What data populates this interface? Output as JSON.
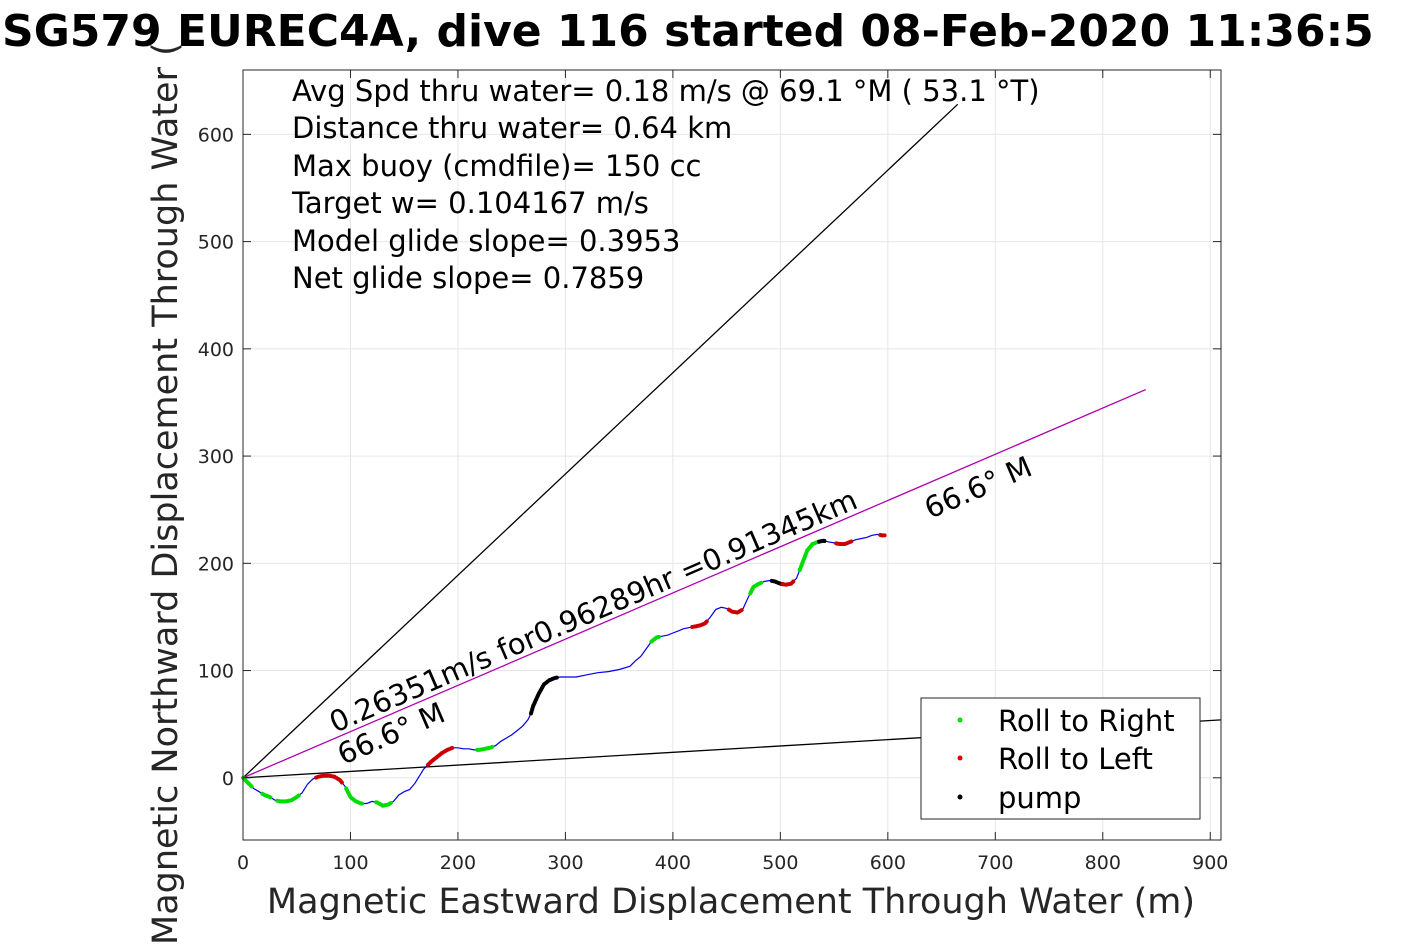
{
  "chart_data": {
    "type": "line",
    "title": "SG579 EUREC4A, dive 116 started 08-Feb-2020 11:36:5",
    "xlabel": "Magnetic Eastward Displacement Through Water (m)",
    "ylabel": "Magnetic Northward Displacement Through Water (",
    "xlim": [
      0,
      910
    ],
    "ylim": [
      -58,
      660
    ],
    "xticks": [
      "0",
      "100",
      "200",
      "300",
      "400",
      "500",
      "600",
      "700",
      "800",
      "900"
    ],
    "yticks": [
      "0",
      "100",
      "200",
      "300",
      "400",
      "500",
      "600"
    ],
    "grid": true,
    "info_lines": [
      "Avg Spd thru water=  0.18 m/s @  69.1 °M ( 53.1 °T)",
      "Distance thru water=  0.64 km",
      "Max buoy (cmdfile)= 150 cc",
      "Target w= 0.104167 m/s",
      "Model glide slope= 0.3953",
      "Net glide slope= 0.7859"
    ],
    "current_label": "0.26351m/s for0.96289hr =0.91345km",
    "heading_labels": [
      "66.6° M",
      "66.6° M"
    ],
    "reference_lines": [
      {
        "x": [
          0,
          665
        ],
        "y": [
          0,
          628
        ],
        "color": "#000000"
      },
      {
        "x": [
          0,
          910
        ],
        "y": [
          0,
          54
        ],
        "color": "#000000"
      },
      {
        "x": [
          0,
          840
        ],
        "y": [
          0,
          362
        ],
        "color": "#b000b0"
      }
    ],
    "track": {
      "x": [
        0,
        5,
        10,
        15,
        20,
        25,
        30,
        35,
        40,
        45,
        50,
        55,
        60,
        65,
        70,
        75,
        80,
        85,
        90,
        95,
        100,
        105,
        110,
        115,
        120,
        125,
        130,
        135,
        140,
        145,
        150,
        155,
        160,
        165,
        168,
        170,
        175,
        180,
        185,
        190,
        195,
        200,
        205,
        210,
        215,
        220,
        225,
        230,
        235,
        240,
        245,
        250,
        255,
        260,
        265,
        268,
        270,
        275,
        280,
        285,
        290,
        295,
        300,
        310,
        320,
        330,
        340,
        350,
        360,
        365,
        370,
        375,
        380,
        385,
        390,
        395,
        400,
        405,
        410,
        415,
        420,
        425,
        430,
        435,
        440,
        445,
        450,
        455,
        460,
        465,
        470,
        475,
        480,
        485,
        490,
        495,
        500,
        505,
        510,
        515,
        520,
        525,
        530,
        535,
        540,
        545,
        550,
        555,
        560,
        565,
        570,
        575,
        580,
        585,
        590,
        595
      ],
      "y": [
        0,
        -5,
        -10,
        -13,
        -16,
        -18,
        -21,
        -22,
        -22,
        -21,
        -18,
        -14,
        -6,
        -1,
        1,
        2,
        2,
        1,
        -2,
        -8,
        -18,
        -22,
        -24,
        -24,
        -22,
        -23,
        -26,
        -25,
        -22,
        -16,
        -13,
        -11,
        -5,
        3,
        8,
        10,
        15,
        19,
        23,
        26,
        28,
        28,
        27,
        27,
        26,
        26,
        27,
        28,
        30,
        34,
        37,
        40,
        44,
        48,
        54,
        60,
        67,
        78,
        87,
        91,
        93,
        94,
        94,
        94,
        96,
        98,
        99,
        101,
        104,
        109,
        113,
        120,
        127,
        131,
        132,
        133,
        135,
        137,
        139,
        140,
        141,
        142,
        144,
        150,
        157,
        159,
        158,
        155,
        154,
        157,
        168,
        178,
        181,
        183,
        184,
        183,
        181,
        180,
        181,
        186,
        199,
        212,
        218,
        220,
        221,
        220,
        219,
        218,
        218,
        220,
        222,
        223,
        224,
        226,
        227,
        226
      ]
    },
    "segments": [
      {
        "type": "right",
        "x": [
          0,
          8
        ],
        "color": "#00dd00"
      },
      {
        "type": "right",
        "x": [
          18,
          26
        ],
        "color": "#00dd00"
      },
      {
        "type": "right",
        "x": [
          32,
          52
        ],
        "color": "#00dd00"
      },
      {
        "type": "left",
        "x": [
          68,
          92
        ],
        "color": "#cc0000"
      },
      {
        "type": "right",
        "x": [
          96,
          112
        ],
        "color": "#00dd00"
      },
      {
        "type": "right",
        "x": [
          124,
          138
        ],
        "color": "#00dd00"
      },
      {
        "type": "left",
        "x": [
          172,
          196
        ],
        "color": "#cc0000"
      },
      {
        "type": "right",
        "x": [
          218,
          232
        ],
        "color": "#00dd00"
      },
      {
        "type": "pump",
        "x": [
          268,
          292
        ],
        "color": "#000000"
      },
      {
        "type": "right",
        "x": [
          380,
          388
        ],
        "color": "#00dd00"
      },
      {
        "type": "left",
        "x": [
          418,
          432
        ],
        "color": "#cc0000"
      },
      {
        "type": "left",
        "x": [
          452,
          464
        ],
        "color": "#cc0000"
      },
      {
        "type": "right",
        "x": [
          472,
          482
        ],
        "color": "#00dd00"
      },
      {
        "type": "pump",
        "x": [
          492,
          502
        ],
        "color": "#000000"
      },
      {
        "type": "left",
        "x": [
          502,
          512
        ],
        "color": "#cc0000"
      },
      {
        "type": "right",
        "x": [
          518,
          536
        ],
        "color": "#00dd00"
      },
      {
        "type": "pump",
        "x": [
          536,
          542
        ],
        "color": "#000000"
      },
      {
        "type": "left",
        "x": [
          552,
          566
        ],
        "color": "#cc0000"
      },
      {
        "type": "left",
        "x": [
          593,
          597
        ],
        "color": "#cc0000"
      }
    ],
    "legend": {
      "placement": "bottom-right",
      "entries": [
        {
          "label": "Roll to Right",
          "color": "#00dd00"
        },
        {
          "label": "Roll to Left",
          "color": "#dd0000"
        },
        {
          "label": "pump",
          "color": "#000000"
        }
      ]
    },
    "track_color": "#0000ee"
  }
}
